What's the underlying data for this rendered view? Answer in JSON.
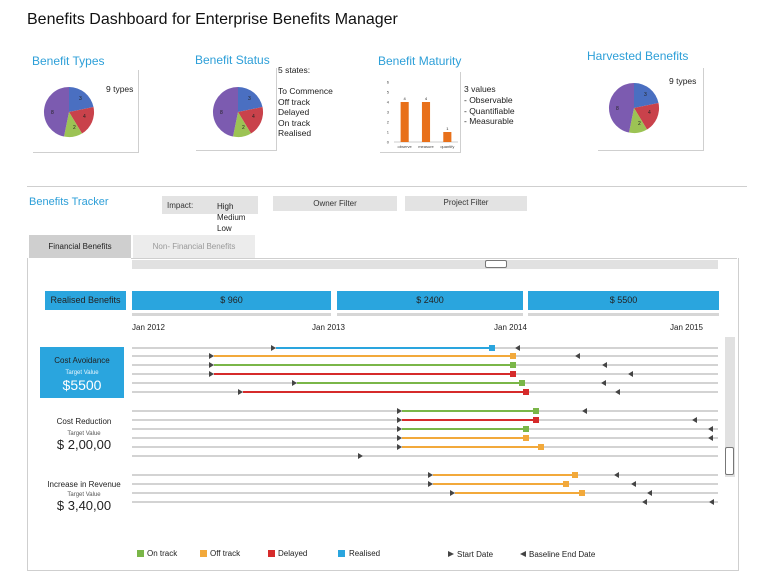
{
  "page": {
    "title": "Benefits Dashboard for Enterprise Benefits Manager"
  },
  "benefit_types": {
    "title": "Benefit Types",
    "note": "9 types",
    "slices": [
      "8",
      "3",
      "4",
      "2"
    ]
  },
  "benefit_status": {
    "title": "Benefit Status",
    "heading": "5 states:",
    "states": [
      "To Commence",
      "Off track",
      "Delayed",
      "On track",
      "Realised"
    ],
    "slices": [
      "8",
      "3",
      "4",
      "2"
    ]
  },
  "benefit_maturity": {
    "title": "Benefit Maturity",
    "note_heading": "3 values",
    "values_list": [
      "- Observable",
      "- Quantifiable",
      "- Measurable"
    ],
    "chart_data": {
      "type": "bar",
      "categories": [
        "observe",
        "measure",
        "quantify"
      ],
      "values": [
        4,
        4,
        1
      ],
      "ylim": [
        0,
        6
      ],
      "yticks": [
        "0",
        "1",
        "2",
        "3",
        "4",
        "5",
        "6"
      ],
      "data_labels": [
        "4",
        "4",
        "1"
      ],
      "color": "#e8701a"
    }
  },
  "harvested": {
    "title": "Harvested Benefits",
    "note": "9 types",
    "slices": [
      "8",
      "3",
      "4",
      "2"
    ]
  },
  "tracker": {
    "title": "Benefits Tracker",
    "impact_label": "Impact:",
    "impact_options": [
      "High",
      "Medium",
      "Low"
    ],
    "owner_filter": "Owner Filter",
    "project_filter": "Project Filter",
    "tabs": [
      "Financial Benefits",
      "Non- Financial Benefits"
    ],
    "realised_label": "Realised Benefits",
    "realised_values": [
      "$ 960",
      "$ 2400",
      "$ 5500"
    ],
    "years": [
      "Jan 2012",
      "Jan 2013",
      "Jan 2014",
      "Jan 2015"
    ],
    "categories": [
      {
        "name": "Cost Avoidance",
        "target_label": "Target Value",
        "target_value": "$5500"
      },
      {
        "name": "Cost Reduction",
        "target_label": "Target Value",
        "target_value": "$ 2,00,00"
      },
      {
        "name": "Increase in Revenue",
        "target_label": "Target Value",
        "target_value": "$ 3,40,00"
      }
    ]
  },
  "legend": {
    "items": [
      {
        "label": "On track",
        "color": "#7ab648"
      },
      {
        "label": "Off track",
        "color": "#f2a93b"
      },
      {
        "label": "Delayed",
        "color": "#d62b2b"
      },
      {
        "label": "Realised",
        "color": "#2aa5de"
      }
    ],
    "start_date": "Start Date",
    "baseline_end": "Baseline End Date"
  },
  "colors": {
    "accent": "#2d9fd8",
    "pie_blue": "#4a6fc1",
    "pie_red": "#c9424b",
    "pie_green": "#9cc354",
    "pie_purple": "#7c5bb0"
  }
}
